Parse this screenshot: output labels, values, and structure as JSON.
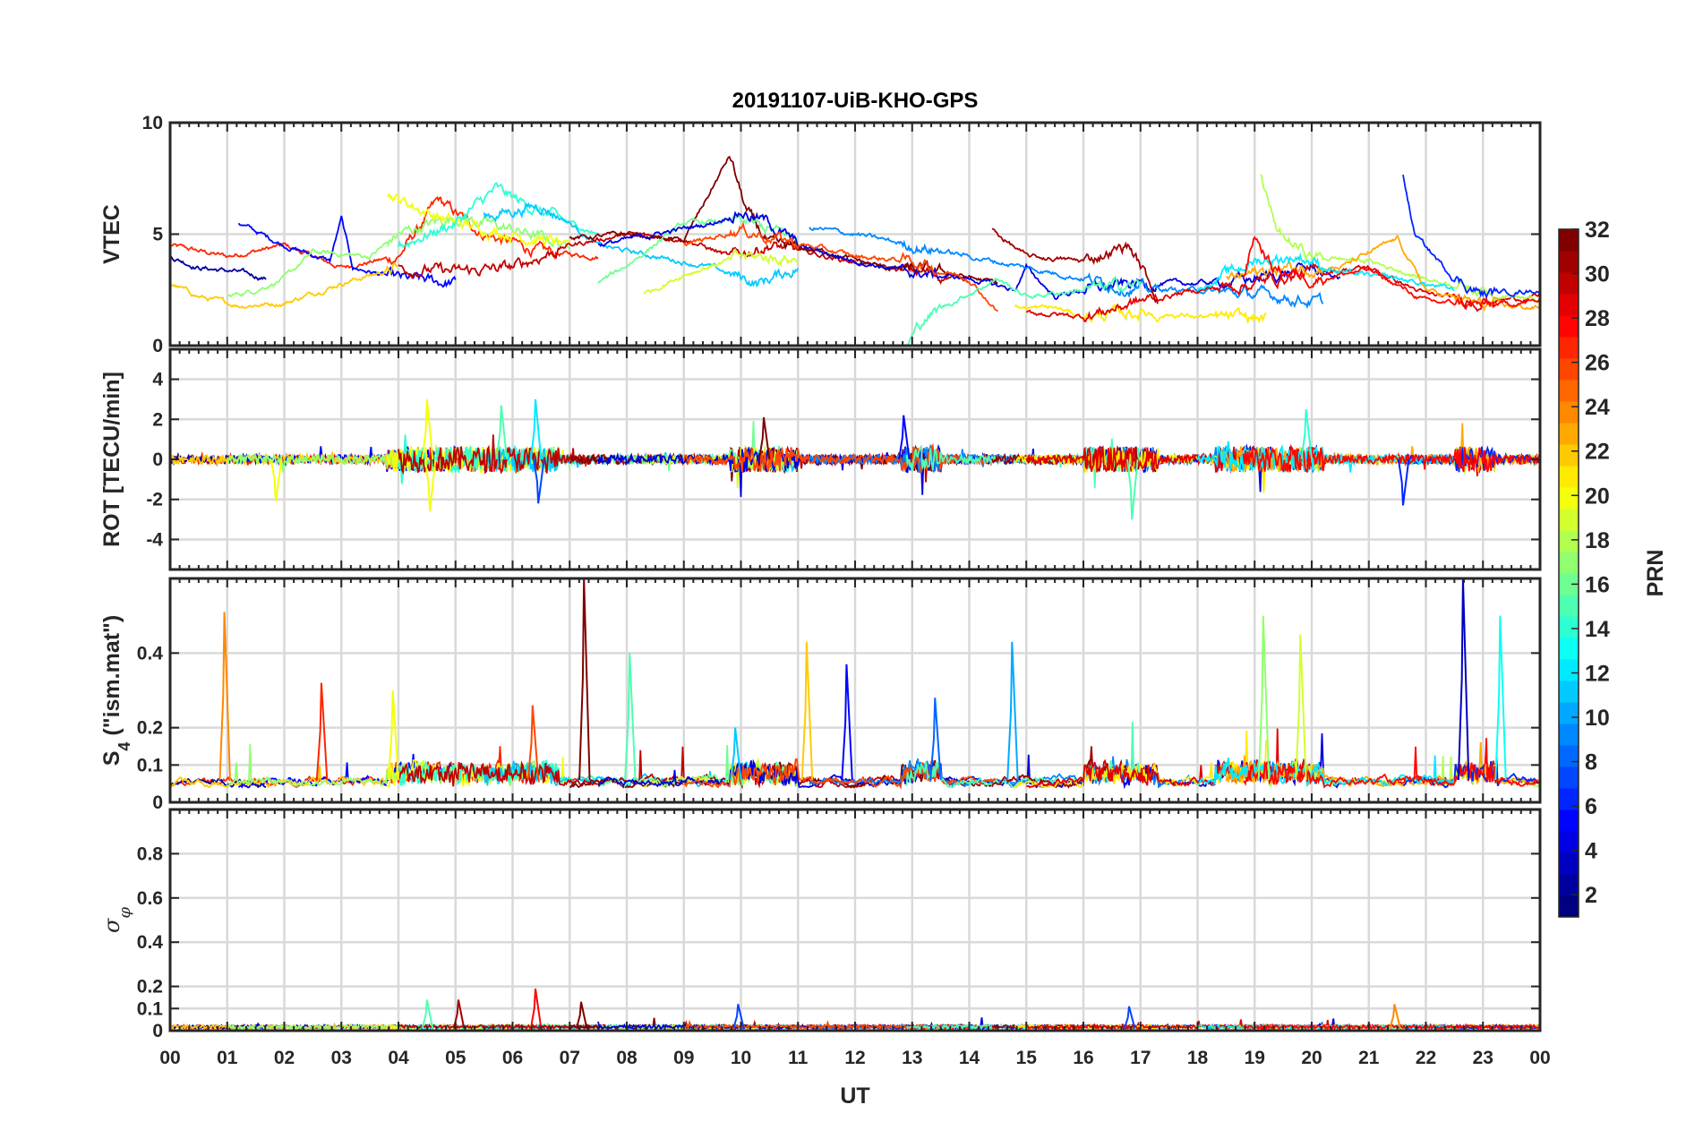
{
  "chart_data": {
    "type": "line",
    "title": "20191107-UiB-KHO-GPS",
    "xlabel": "UT",
    "xlim": [
      0,
      24
    ],
    "x_tick_labels": [
      "00",
      "01",
      "02",
      "03",
      "04",
      "05",
      "06",
      "07",
      "08",
      "09",
      "10",
      "11",
      "12",
      "13",
      "14",
      "15",
      "16",
      "17",
      "18",
      "19",
      "20",
      "21",
      "22",
      "23",
      "00"
    ],
    "grid": true,
    "colorbar": {
      "label": "PRN",
      "range": [
        1,
        32
      ],
      "ticks": [
        "2",
        "4",
        "6",
        "8",
        "10",
        "12",
        "14",
        "16",
        "18",
        "20",
        "22",
        "24",
        "26",
        "28",
        "30",
        "32"
      ],
      "colormap": "jet"
    },
    "panels": [
      {
        "id": "vtec",
        "ylabel": "VTEC",
        "ylim": [
          0,
          10
        ],
        "yticks": [
          0,
          5,
          10
        ],
        "ytick_labels": [
          "0",
          "5",
          "10"
        ]
      },
      {
        "id": "rot",
        "ylabel": "ROT [TECU/min]",
        "ylim": [
          -5.5,
          5.5
        ],
        "yticks": [
          -4,
          -2,
          0,
          2,
          4
        ],
        "ytick_labels": [
          "-4",
          "-2",
          "0",
          "2",
          "4"
        ]
      },
      {
        "id": "s4",
        "ylabel_main": "S",
        "ylabel_sub": "4",
        "ylabel_rest": " (\"ism.mat\")",
        "ylim": [
          0,
          0.6
        ],
        "yticks": [
          0,
          0.1,
          0.2,
          0.4
        ],
        "ytick_labels": [
          "0",
          "0.1",
          "0.2",
          "0.4"
        ]
      },
      {
        "id": "sigma",
        "ylabel_main": "σ",
        "ylabel_sub": "φ",
        "ylim": [
          0,
          1
        ],
        "yticks": [
          0,
          0.1,
          0.2,
          0.4,
          0.6,
          0.8
        ],
        "ytick_labels": [
          "0",
          "0.1",
          "0.2",
          "0.4",
          "0.6",
          "0.8"
        ]
      }
    ],
    "vtec_tracks": [
      {
        "prn": 27,
        "x": [
          0,
          1,
          2,
          3,
          4,
          4.7,
          5.5,
          6.5,
          7.5
        ],
        "y": [
          4.5,
          4,
          4.5,
          3.5,
          4,
          6.5,
          5,
          4.2,
          4
        ]
      },
      {
        "prn": 2,
        "x": [
          0,
          0.5,
          1.2,
          1.7
        ],
        "y": [
          4,
          3.5,
          3.3,
          3
        ]
      },
      {
        "prn": 5,
        "x": [
          1.2,
          2,
          2.8,
          3,
          3.2,
          4,
          5
        ],
        "y": [
          5.5,
          4.5,
          3.8,
          5.7,
          3.5,
          3,
          2.8
        ]
      },
      {
        "prn": 22,
        "x": [
          0,
          0.5,
          1.2,
          2,
          3,
          4
        ],
        "y": [
          2.8,
          2.2,
          1.8,
          1.9,
          2.8,
          3.5
        ]
      },
      {
        "prn": 17,
        "x": [
          1,
          1.5,
          2,
          2.5,
          3.5,
          4,
          5,
          6,
          7
        ],
        "y": [
          2.2,
          2.5,
          3,
          4.2,
          4,
          5,
          5.8,
          5.2,
          4.5
        ]
      },
      {
        "prn": 20,
        "x": [
          3.8,
          4.5,
          5,
          6,
          7
        ],
        "y": [
          6.8,
          6,
          5.5,
          5,
          4.5
        ]
      },
      {
        "prn": 14,
        "x": [
          4,
          5,
          5.7,
          6.5,
          7.5
        ],
        "y": [
          4.5,
          5.5,
          7,
          6,
          5
        ]
      },
      {
        "prn": 11,
        "x": [
          5.5,
          6.5,
          7,
          7.5,
          8.5,
          9.5,
          10.3,
          11
        ],
        "y": [
          5.8,
          6.3,
          5.5,
          4.5,
          4,
          3.5,
          2.8,
          3.5
        ]
      },
      {
        "prn": 30,
        "x": [
          4,
          5,
          6,
          7,
          8,
          9,
          9.8,
          10.5,
          11.5,
          12.5,
          14
        ],
        "y": [
          3.5,
          3.3,
          3.5,
          4.5,
          5,
          4.8,
          4,
          4.5,
          4,
          3.5,
          3
        ]
      },
      {
        "prn": 32,
        "x": [
          7,
          8,
          9,
          9.8,
          10.1,
          10.5,
          11.5,
          12.5,
          13.5,
          14.5
        ],
        "y": [
          4.8,
          5,
          4.7,
          8.5,
          6,
          4.5,
          4.2,
          3.5,
          3.3,
          2.8
        ]
      },
      {
        "prn": 16,
        "x": [
          7.5,
          8,
          9,
          10,
          11
        ],
        "y": [
          2.8,
          3.6,
          5.5,
          5.6,
          4.8
        ]
      },
      {
        "prn": 19,
        "x": [
          8.3,
          9,
          10,
          11
        ],
        "y": [
          2.3,
          3.2,
          4,
          3.9
        ]
      },
      {
        "prn": 4,
        "x": [
          7.5,
          8.5,
          9.5,
          10,
          10.5,
          11,
          12,
          13,
          14,
          14.8,
          15,
          15.5,
          16,
          17,
          18,
          19,
          20,
          20.5
        ],
        "y": [
          4.5,
          5,
          5.5,
          6,
          5.5,
          4.5,
          3.8,
          3.3,
          3,
          2.5,
          3.5,
          2.2,
          2.5,
          2.8,
          2.8,
          3,
          3.5,
          3
        ]
      },
      {
        "prn": 9,
        "x": [
          11.2,
          12,
          13,
          14,
          15,
          16,
          17,
          18,
          19,
          19.5,
          20.2
        ],
        "y": [
          5.3,
          5,
          4.5,
          4,
          3.5,
          3,
          2.5,
          2.5,
          2.3,
          2.2,
          1.9
        ]
      },
      {
        "prn": 26,
        "x": [
          9,
          10,
          11,
          12,
          13,
          14,
          14.5
        ],
        "y": [
          4.5,
          5.2,
          4.6,
          4,
          3.8,
          3,
          1.5
        ]
      },
      {
        "prn": 15,
        "x": [
          12.9,
          13.2,
          13.6,
          14.5,
          15,
          16,
          17
        ],
        "y": [
          0,
          1.2,
          1.8,
          3,
          2.2,
          2.5,
          2.8
        ]
      },
      {
        "prn": 31,
        "x": [
          14.4,
          15,
          16,
          16.8,
          17.3
        ],
        "y": [
          5.2,
          4,
          3.8,
          4.5,
          2.2
        ]
      },
      {
        "prn": 21,
        "x": [
          14.8,
          15.5,
          16,
          17,
          18,
          19.2
        ],
        "y": [
          1.7,
          1.7,
          1.3,
          1.5,
          1.3,
          1.2
        ]
      },
      {
        "prn": 29,
        "x": [
          15,
          16,
          17,
          18,
          19,
          20,
          21,
          22,
          23,
          24
        ],
        "y": [
          1.5,
          1.3,
          2,
          2.5,
          2.8,
          3.3,
          3.5,
          2.3,
          2,
          2.2
        ]
      },
      {
        "prn": 18,
        "x": [
          19.1,
          19.4,
          20,
          21,
          22,
          23,
          24
        ],
        "y": [
          7.8,
          5,
          4,
          3.8,
          3,
          2.5,
          2
        ]
      },
      {
        "prn": 23,
        "x": [
          18.5,
          19.5,
          20.5,
          21.5,
          22,
          23,
          24
        ],
        "y": [
          3,
          3.5,
          3.5,
          4.8,
          2.5,
          1.8,
          1.7
        ]
      },
      {
        "prn": 6,
        "x": [
          21.6,
          21.8,
          22.5,
          23,
          24
        ],
        "y": [
          7.7,
          5,
          3,
          2.3,
          2.5
        ]
      },
      {
        "prn": 12,
        "x": [
          18,
          19,
          19.8,
          20.5,
          21.5,
          22.5
        ],
        "y": [
          2.5,
          3.8,
          4,
          3.3,
          3,
          2.5
        ]
      },
      {
        "prn": 28,
        "x": [
          18.8,
          19,
          19.3,
          20,
          21,
          22,
          23,
          24
        ],
        "y": [
          3,
          5,
          3.5,
          3,
          3.4,
          2,
          1.8,
          2
        ]
      }
    ],
    "rot_spikes": [
      [
        4.5,
        3,
        20
      ],
      [
        4.55,
        -2.6,
        20
      ],
      [
        6.4,
        3,
        12
      ],
      [
        6.45,
        -2.2,
        7
      ],
      [
        10.4,
        2.1,
        32
      ],
      [
        12.85,
        2.2,
        5
      ],
      [
        16.85,
        -3,
        15
      ],
      [
        19.9,
        2.5,
        14
      ],
      [
        21.6,
        -2.3,
        6
      ],
      [
        1.85,
        -2.1,
        20
      ],
      [
        5.8,
        2.7,
        15
      ]
    ],
    "s4_spikes": [
      [
        0.95,
        0.51,
        24
      ],
      [
        2.65,
        0.32,
        27
      ],
      [
        3.9,
        0.3,
        20
      ],
      [
        7.25,
        0.6,
        32
      ],
      [
        8.05,
        0.4,
        15
      ],
      [
        11.15,
        0.43,
        22
      ],
      [
        11.85,
        0.37,
        5
      ],
      [
        14.75,
        0.43,
        10
      ],
      [
        19.15,
        0.5,
        17
      ],
      [
        19.8,
        0.45,
        19
      ],
      [
        22.65,
        0.6,
        3
      ],
      [
        23.3,
        0.5,
        13
      ],
      [
        13.4,
        0.28,
        8
      ],
      [
        6.35,
        0.26,
        26
      ],
      [
        9.9,
        0.2,
        11
      ]
    ],
    "sigma_spikes": [
      [
        5.05,
        0.14,
        31
      ],
      [
        6.4,
        0.19,
        28
      ],
      [
        9.95,
        0.12,
        7
      ],
      [
        16.8,
        0.11,
        7
      ],
      [
        21.45,
        0.12,
        24
      ],
      [
        4.5,
        0.14,
        15
      ],
      [
        7.2,
        0.13,
        32
      ]
    ]
  }
}
